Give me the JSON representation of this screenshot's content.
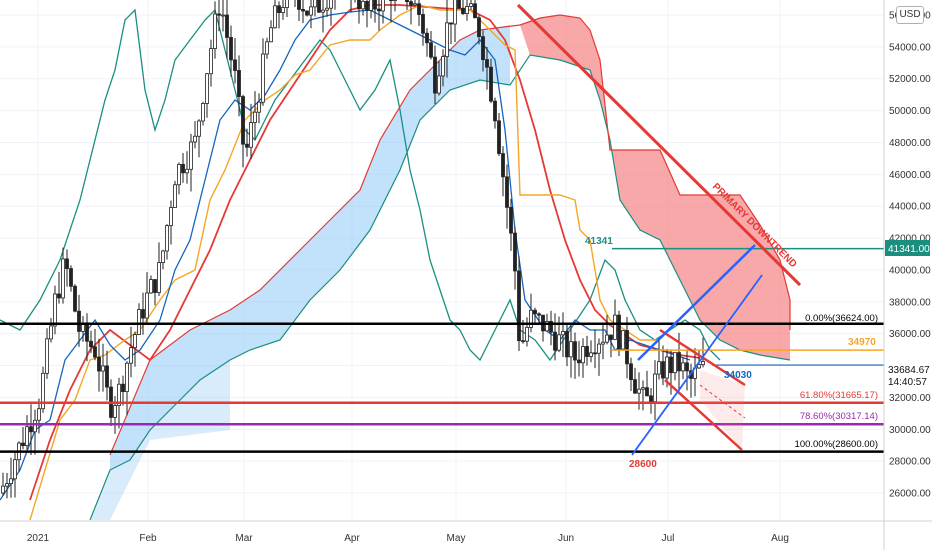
{
  "currency_button": "USD",
  "chart_data": {
    "type": "candlestick",
    "x_ticks": [
      "2021",
      "Feb",
      "Mar",
      "Apr",
      "May",
      "Jun",
      "Jul",
      "Aug"
    ],
    "y_ticks": [
      "26000.00",
      "28000.00",
      "30000.00",
      "32000.00",
      "34000.00",
      "36000.00",
      "38000.00",
      "40000.00",
      "42000.00",
      "44000.00",
      "46000.00",
      "48000.00",
      "50000.00",
      "52000.00",
      "54000.00",
      "56000.00"
    ],
    "ylim": [
      24500,
      57400
    ],
    "current_price": "33684.67",
    "countdown": "14:40:57",
    "fib_levels": [
      {
        "label": "0.00%(36624.00)",
        "value": 36624,
        "color": "#000000"
      },
      {
        "label": "61.80%(31665.17)",
        "value": 31665,
        "color": "#e53935"
      },
      {
        "label": "78.60%(30317.14)",
        "value": 30317,
        "color": "#9c27b0"
      },
      {
        "label": "100.00%(28600.00)",
        "value": 28600,
        "color": "#000000"
      }
    ],
    "horizontal_levels": [
      {
        "label": "41341",
        "value": 41341,
        "color": "#1a8f80"
      },
      {
        "label": "34970",
        "value": 34970,
        "color": "#f5a623"
      },
      {
        "label": "34030",
        "value": 34030,
        "color": "#1565c0"
      }
    ],
    "price_tags": [
      "41341.00",
      "33684.67"
    ],
    "annotations": {
      "primary_downtrend": "PRIMARY DOWNTREND",
      "low": "28600",
      "high": "41341",
      "orange": "34970",
      "blue": "34030"
    },
    "colors": {
      "candle": "#222222",
      "ema_red": "#e53935",
      "kijun_orange": "#f5a623",
      "tenkan_blue": "#1565c0",
      "chikou_teal": "#1a8f80",
      "cloud_bull": "#90c8f5",
      "cloud_bear": "#f47a7a"
    }
  }
}
